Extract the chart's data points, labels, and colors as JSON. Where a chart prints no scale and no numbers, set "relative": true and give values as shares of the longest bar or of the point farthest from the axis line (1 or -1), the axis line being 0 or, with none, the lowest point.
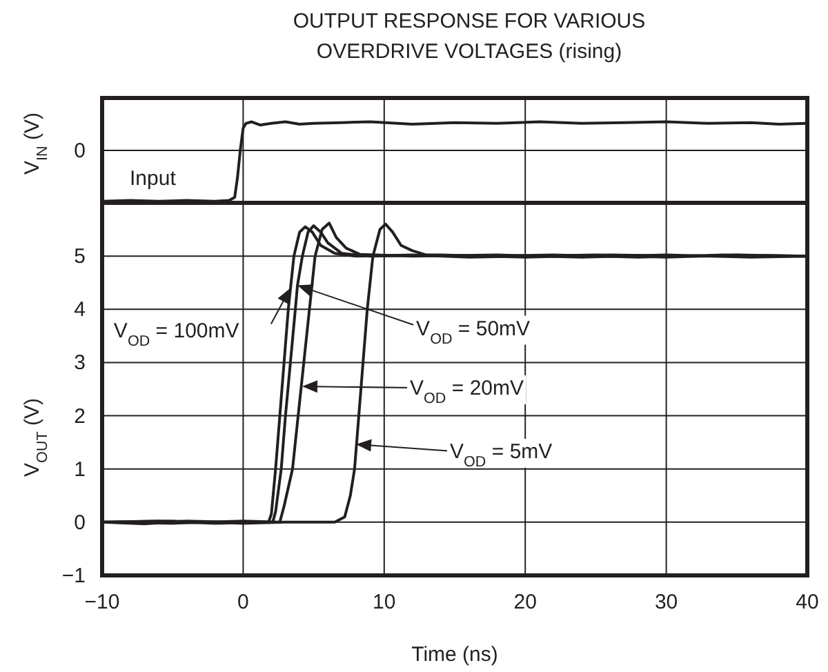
{
  "chart_data": [
    {
      "type": "line",
      "title": "OUTPUT RESPONSE FOR VARIOUS OVERDRIVE VOLTAGES (rising)",
      "ylabel": "V$_{IN}$ (V)",
      "relative": true,
      "xlim": [
        -10,
        40
      ],
      "xticks": [
        -10,
        0,
        10,
        20,
        30,
        40
      ],
      "tick_labels": false,
      "grid": true,
      "annotations": [
        "0"
      ],
      "series": [
        {
          "name": "Input",
          "color": "#231f20",
          "x": [
            -10,
            -8,
            -6,
            -4,
            -2,
            -1,
            -0.6,
            -0.4,
            -0.2,
            0,
            0.2,
            0.6,
            1.2,
            2,
            3,
            4,
            5,
            7,
            9,
            12,
            15,
            18,
            21,
            24,
            27,
            30,
            33,
            36,
            38,
            40
          ],
          "values": [
            0,
            0.01,
            0,
            0.01,
            0,
            0.01,
            0.05,
            0.3,
            0.65,
            0.92,
            0.98,
            1,
            0.96,
            0.98,
            1,
            0.97,
            0.98,
            0.99,
            1,
            0.97,
            0.99,
            0.98,
            1,
            0.98,
            0.99,
            1,
            0.98,
            0.99,
            0.97,
            0.98
          ]
        }
      ]
    },
    {
      "type": "line",
      "xlabel": "Time (ns)",
      "ylabel": "V$_{OUT}$ (V)",
      "xlim": [
        -10,
        40
      ],
      "xticks": [
        -10,
        0,
        10,
        20,
        30,
        40
      ],
      "ylim": [
        -1,
        6
      ],
      "yticks": [
        -1,
        0,
        1,
        2,
        3,
        4,
        5
      ],
      "grid": true,
      "annotations": [
        {
          "text": "V$_{OD}$ = 100mV",
          "x": 3.35,
          "y": 4.4
        },
        {
          "text": "V$_{OD}$ = 50mV",
          "x": 3.85,
          "y": 4.45
        },
        "V$_{OD}$ = 20mV",
        "V$_{OD}$ = 5mV"
      ],
      "series": [
        {
          "color": "#231f20",
          "x": [
            -10,
            -7,
            -4,
            -1,
            1.8,
            2.0,
            2.3,
            2.6,
            2.9,
            3.2,
            3.6,
            4.0,
            4.4,
            4.9,
            5.5,
            6.5,
            8,
            12,
            16,
            20,
            25,
            30,
            35,
            40
          ],
          "values": [
            0,
            -0.03,
            0.02,
            0,
            0,
            0.15,
            1,
            2,
            3,
            4,
            5,
            5.45,
            5.55,
            5.45,
            5.2,
            5.05,
            5,
            5.02,
            4.98,
            5,
            5.02,
            4.98,
            5.02,
            5
          ]
        },
        {
          "color": "#231f20",
          "x": [
            -10,
            -6,
            -2,
            2.1,
            2.3,
            2.7,
            3.0,
            3.35,
            3.7,
            3.85,
            4.2,
            4.6,
            5.0,
            5.5,
            6,
            7,
            9,
            14,
            20,
            26,
            32,
            40
          ],
          "values": [
            0,
            0.02,
            -0.02,
            0,
            0.2,
            1,
            2,
            3,
            4,
            4.45,
            5,
            5.45,
            5.57,
            5.45,
            5.25,
            5.05,
            5,
            5.02,
            4.98,
            5.02,
            5,
            5
          ]
        },
        {
          "color": "#231f20",
          "x": [
            -10,
            -5,
            0,
            2.6,
            2.9,
            3.5,
            3.9,
            4.3,
            4.7,
            5.1,
            5.6,
            6.1,
            6.6,
            7.3,
            8.3,
            12,
            18,
            24,
            30,
            36,
            40
          ],
          "values": [
            0,
            -0.02,
            0.02,
            0,
            0.3,
            1,
            2,
            3,
            4,
            5,
            5.5,
            5.62,
            5.35,
            5.15,
            5.03,
            5,
            5.02,
            4.98,
            5.02,
            4.98,
            5
          ]
        },
        {
          "color": "#231f20",
          "x": [
            -10,
            -5,
            0,
            3,
            6.5,
            7.2,
            7.6,
            7.9,
            8.2,
            8.5,
            8.8,
            9.2,
            9.7,
            10.1,
            10.6,
            11.2,
            12,
            13,
            17,
            22,
            28,
            34,
            40
          ],
          "values": [
            0,
            0.02,
            -0.02,
            0,
            0,
            0.1,
            0.5,
            1,
            2,
            3,
            4,
            5,
            5.5,
            5.6,
            5.45,
            5.2,
            5.1,
            5.02,
            5,
            5.02,
            4.98,
            5.02,
            5
          ]
        }
      ]
    }
  ]
}
